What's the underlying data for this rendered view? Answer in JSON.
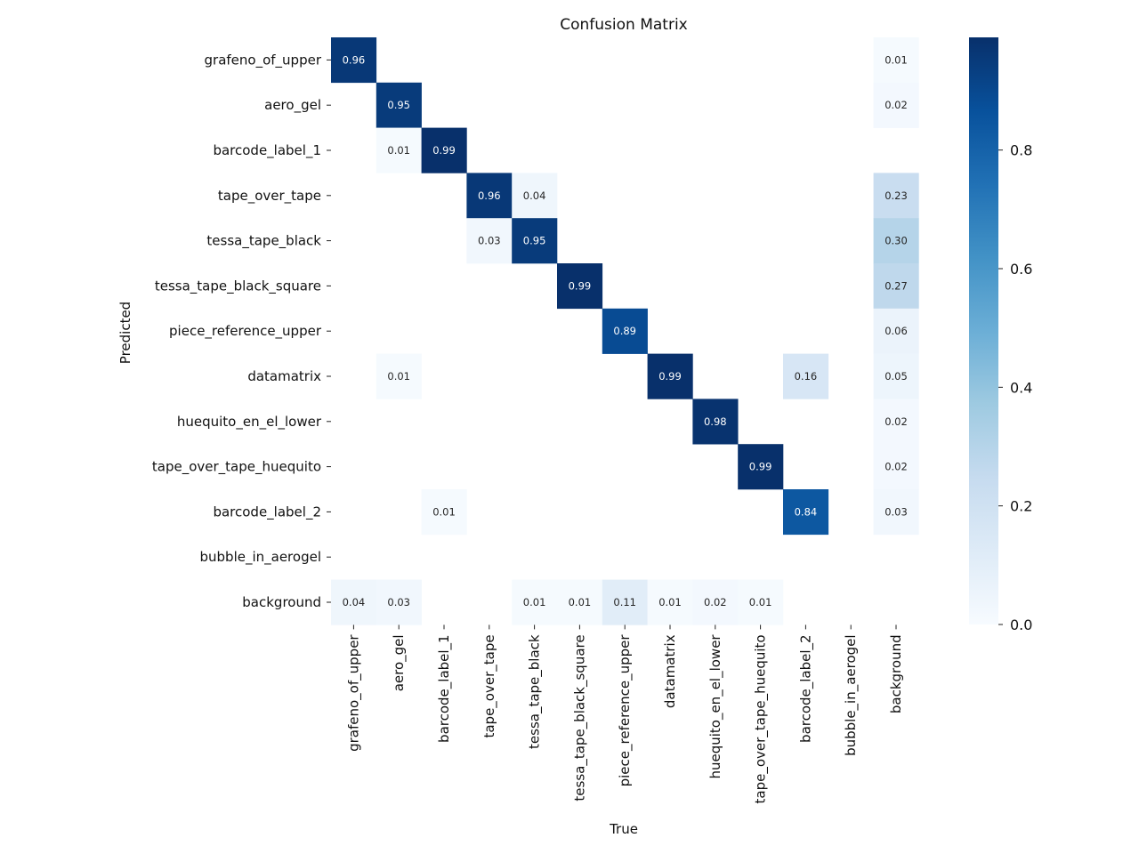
{
  "chart_data": {
    "type": "heatmap",
    "title": "Confusion Matrix",
    "xlabel": "True",
    "ylabel": "Predicted",
    "row_labels": [
      "grafeno_of_upper",
      "aero_gel",
      "barcode_label_1",
      "tape_over_tape",
      "tessa_tape_black",
      "tessa_tape_black_square",
      "piece_reference_upper",
      "datamatrix",
      "huequito_en_el_lower",
      "tape_over_tape_huequito",
      "barcode_label_2",
      "bubble_in_aerogel",
      "background"
    ],
    "col_labels": [
      "grafeno_of_upper",
      "aero_gel",
      "barcode_label_1",
      "tape_over_tape",
      "tessa_tape_black",
      "tessa_tape_black_square",
      "piece_reference_upper",
      "datamatrix",
      "huequito_en_el_lower",
      "tape_over_tape_huequito",
      "barcode_label_2",
      "bubble_in_aerogel",
      "background"
    ],
    "cells": [
      {
        "row": 0,
        "col": 0,
        "value": 0.96,
        "label": "0.96"
      },
      {
        "row": 0,
        "col": 12,
        "value": 0.01,
        "label": "0.01"
      },
      {
        "row": 1,
        "col": 1,
        "value": 0.95,
        "label": "0.95"
      },
      {
        "row": 1,
        "col": 12,
        "value": 0.02,
        "label": "0.02"
      },
      {
        "row": 2,
        "col": 1,
        "value": 0.01,
        "label": "0.01"
      },
      {
        "row": 2,
        "col": 2,
        "value": 0.99,
        "label": "0.99"
      },
      {
        "row": 3,
        "col": 3,
        "value": 0.96,
        "label": "0.96"
      },
      {
        "row": 3,
        "col": 4,
        "value": 0.04,
        "label": "0.04"
      },
      {
        "row": 3,
        "col": 12,
        "value": 0.23,
        "label": "0.23"
      },
      {
        "row": 4,
        "col": 3,
        "value": 0.03,
        "label": "0.03"
      },
      {
        "row": 4,
        "col": 4,
        "value": 0.95,
        "label": "0.95"
      },
      {
        "row": 4,
        "col": 12,
        "value": 0.3,
        "label": "0.30"
      },
      {
        "row": 5,
        "col": 5,
        "value": 0.99,
        "label": "0.99"
      },
      {
        "row": 5,
        "col": 12,
        "value": 0.27,
        "label": "0.27"
      },
      {
        "row": 6,
        "col": 6,
        "value": 0.89,
        "label": "0.89"
      },
      {
        "row": 6,
        "col": 12,
        "value": 0.06,
        "label": "0.06"
      },
      {
        "row": 7,
        "col": 1,
        "value": 0.01,
        "label": "0.01"
      },
      {
        "row": 7,
        "col": 7,
        "value": 0.99,
        "label": "0.99"
      },
      {
        "row": 7,
        "col": 10,
        "value": 0.16,
        "label": "0.16"
      },
      {
        "row": 7,
        "col": 12,
        "value": 0.05,
        "label": "0.05"
      },
      {
        "row": 8,
        "col": 8,
        "value": 0.98,
        "label": "0.98"
      },
      {
        "row": 8,
        "col": 12,
        "value": 0.02,
        "label": "0.02"
      },
      {
        "row": 9,
        "col": 9,
        "value": 0.99,
        "label": "0.99"
      },
      {
        "row": 9,
        "col": 12,
        "value": 0.02,
        "label": "0.02"
      },
      {
        "row": 10,
        "col": 2,
        "value": 0.01,
        "label": "0.01"
      },
      {
        "row": 10,
        "col": 10,
        "value": 0.84,
        "label": "0.84"
      },
      {
        "row": 10,
        "col": 12,
        "value": 0.03,
        "label": "0.03"
      },
      {
        "row": 12,
        "col": 0,
        "value": 0.04,
        "label": "0.04"
      },
      {
        "row": 12,
        "col": 1,
        "value": 0.03,
        "label": "0.03"
      },
      {
        "row": 12,
        "col": 4,
        "value": 0.01,
        "label": "0.01"
      },
      {
        "row": 12,
        "col": 5,
        "value": 0.01,
        "label": "0.01"
      },
      {
        "row": 12,
        "col": 6,
        "value": 0.11,
        "label": "0.11"
      },
      {
        "row": 12,
        "col": 7,
        "value": 0.01,
        "label": "0.01"
      },
      {
        "row": 12,
        "col": 8,
        "value": 0.02,
        "label": "0.02"
      },
      {
        "row": 12,
        "col": 9,
        "value": 0.01,
        "label": "0.01"
      }
    ],
    "colorbar": {
      "range": [
        0.0,
        0.99
      ],
      "ticks": [
        0.0,
        0.2,
        0.4,
        0.6,
        0.8
      ],
      "tick_labels": [
        "0.0",
        "0.2",
        "0.4",
        "0.6",
        "0.8"
      ],
      "colormap": "Blues"
    },
    "grid": false
  }
}
